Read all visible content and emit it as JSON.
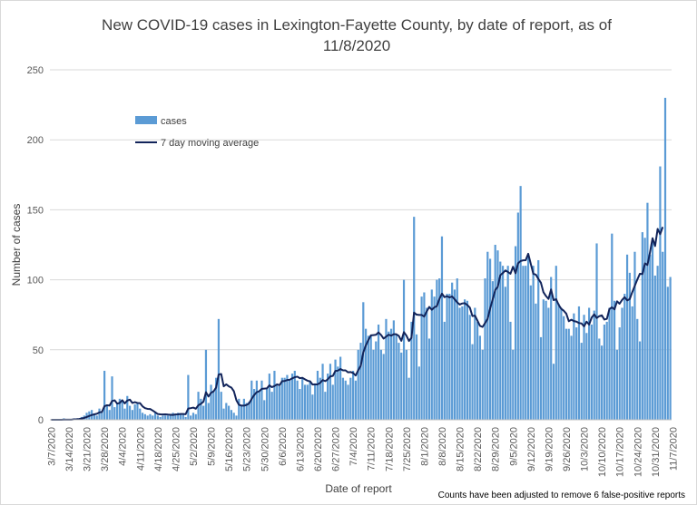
{
  "colors": {
    "bar": "#5b9bd5",
    "line": "#12245a",
    "grid": "#d9d9d9",
    "axis": "#bfbfbf"
  },
  "chart_data": {
    "type": "bar",
    "title_lines": [
      "New COVID-19 cases in Lexington-Fayette County, by date of report, as of",
      "11/8/2020"
    ],
    "xlabel": "Date of report",
    "ylabel": "Number of cases",
    "ylim": [
      0,
      250
    ],
    "yticks": [
      0,
      50,
      100,
      150,
      200,
      250
    ],
    "grid": true,
    "legend_placement": "upper-left",
    "note": "Counts have been adjusted to remove 6 false-positive reports",
    "start_date": "3/7/2020",
    "x_tick_labels": [
      "3/7/2020",
      "3/14/2020",
      "3/21/2020",
      "3/28/2020",
      "4/4/2020",
      "4/11/2020",
      "4/18/2020",
      "4/25/2020",
      "5/2/2020",
      "5/9/2020",
      "5/16/2020",
      "5/23/2020",
      "5/30/2020",
      "6/6/2020",
      "6/13/2020",
      "6/20/2020",
      "6/27/2020",
      "7/4/2020",
      "7/11/2020",
      "7/18/2020",
      "7/25/2020",
      "8/1/2020",
      "8/8/2020",
      "8/15/2020",
      "8/22/2020",
      "8/29/2020",
      "9/5/2020",
      "9/12/2020",
      "9/19/2020",
      "9/26/2020",
      "10/3/2020",
      "10/10/2020",
      "10/17/2020",
      "10/24/2020",
      "10/31/2020",
      "11/7/2020"
    ],
    "series": [
      {
        "name": "cases",
        "type": "bar",
        "values": [
          0,
          0,
          0,
          0,
          0,
          1,
          0,
          0,
          0,
          1,
          1,
          1,
          2,
          3,
          5,
          6,
          7,
          4,
          3,
          8,
          6,
          35,
          10,
          7,
          31,
          9,
          12,
          15,
          14,
          8,
          17,
          10,
          7,
          11,
          12,
          8,
          5,
          4,
          3,
          4,
          3,
          5,
          3,
          2,
          3,
          3,
          3,
          4,
          5,
          4,
          5,
          4,
          4,
          2,
          32,
          3,
          5,
          4,
          20,
          15,
          10,
          50,
          12,
          25,
          20,
          30,
          72,
          20,
          8,
          12,
          10,
          7,
          5,
          3,
          15,
          10,
          15,
          12,
          13,
          28,
          22,
          28,
          20,
          28,
          14,
          22,
          33,
          20,
          35,
          25,
          24,
          30,
          30,
          32,
          28,
          33,
          35,
          28,
          22,
          30,
          25,
          25,
          28,
          18,
          26,
          35,
          30,
          40,
          20,
          33,
          40,
          25,
          43,
          38,
          45,
          30,
          28,
          25,
          30,
          35,
          28,
          50,
          55,
          84,
          65,
          60,
          60,
          50,
          56,
          68,
          50,
          47,
          72,
          63,
          65,
          71,
          61,
          55,
          48,
          100,
          50,
          30,
          70,
          145,
          61,
          38,
          88,
          91,
          80,
          58,
          93,
          88,
          100,
          101,
          131,
          70,
          90,
          90,
          98,
          93,
          101,
          80,
          81,
          86,
          85,
          75,
          54,
          80,
          70,
          60,
          50,
          101,
          120,
          115,
          99,
          125,
          121,
          113,
          110,
          95,
          110,
          70,
          50,
          124,
          148,
          167,
          110,
          110,
          117,
          96,
          110,
          83,
          114,
          59,
          86,
          85,
          80,
          102,
          40,
          110,
          83,
          80,
          74,
          65,
          65,
          60,
          76,
          66,
          81,
          55,
          75,
          62,
          80,
          68,
          78,
          126,
          58,
          53,
          68,
          70,
          80,
          133,
          85,
          50,
          66,
          80,
          90,
          118,
          105,
          81,
          120,
          72,
          56,
          134,
          130,
          155,
          118,
          127,
          103,
          110,
          181,
          120,
          230,
          95,
          102
        ]
      },
      {
        "name": "7 day moving average",
        "type": "line",
        "values": [
          0,
          0,
          0,
          0,
          0,
          0.1,
          0.1,
          0.1,
          0.1,
          0.3,
          0.4,
          0.6,
          0.9,
          1.3,
          2,
          2.7,
          3.4,
          3.9,
          4.3,
          5.3,
          5.6,
          9.7,
          10.4,
          10.1,
          13.4,
          13.9,
          11.6,
          12,
          14,
          11.7,
          13.7,
          14.4,
          12,
          12.6,
          12,
          11.9,
          9.6,
          8.3,
          7.8,
          7.7,
          6.6,
          5.4,
          4.1,
          3.9,
          3.8,
          3.9,
          3.7,
          3.6,
          3.5,
          3.8,
          3.9,
          4.1,
          4.1,
          4,
          8,
          8.3,
          8.7,
          7.9,
          10.4,
          11.4,
          12.9,
          19.7,
          16.6,
          19.3,
          20.3,
          23,
          32.3,
          32.7,
          23.9,
          25.3,
          23.9,
          23,
          20.4,
          13.9,
          10.7,
          10.1,
          10.1,
          10.6,
          11.7,
          14.9,
          17.7,
          19.7,
          20.4,
          22.1,
          22.3,
          22.4,
          24.6,
          23.3,
          24.1,
          25.3,
          24.7,
          27.6,
          27.7,
          28.4,
          28.6,
          29.6,
          30.4,
          30.8,
          29.7,
          30,
          28.9,
          27.9,
          27.5,
          25.2,
          25.3,
          25.3,
          26.4,
          28.4,
          27.6,
          28.9,
          31,
          31.3,
          34.9,
          35.1,
          36.3,
          35.3,
          35.3,
          33.9,
          34.1,
          33.4,
          31.6,
          35.4,
          38.6,
          48.1,
          53.1,
          57,
          60.3,
          60.5,
          60.7,
          62.4,
          60.6,
          58,
          59.4,
          60.8,
          60.1,
          61.1,
          61.1,
          59.9,
          56.4,
          62.6,
          60.1,
          56.3,
          58.6,
          76.6,
          75.1,
          74.9,
          74.9,
          73.7,
          77.4,
          80.6,
          78.6,
          80.3,
          81.2,
          86.3,
          90.1,
          87.6,
          88.3,
          87.4,
          88.1,
          86.1,
          83.9,
          82.3,
          83.1,
          83.3,
          82,
          80.1,
          74.1,
          74.4,
          70.8,
          67.1,
          66.3,
          69.1,
          72.1,
          79.6,
          86,
          92.7,
          95,
          103.3,
          104.8,
          106.7,
          105.6,
          104.3,
          109.3,
          104.7,
          111.8,
          113.4,
          113.9,
          114,
          118.6,
          111.4,
          104.3,
          103.7,
          100.6,
          97.9,
          91.1,
          88.4,
          86.3,
          93.1,
          85.5,
          86.1,
          82.1,
          79.3,
          77.9,
          75.8,
          70.4,
          71.5,
          70.5,
          70.1,
          69.1,
          68.8,
          66.7,
          70.1,
          68,
          73,
          75.3,
          72.7,
          74,
          74.6,
          71.6,
          72.1,
          79.1,
          80.3,
          78.9,
          84.6,
          82.9,
          85.6,
          87.6,
          85.3,
          86.2,
          91.2,
          95.7,
          100.2,
          104.3,
          104.1,
          111.7,
          110.6,
          119.7,
          129.7,
          124.1,
          136.3,
          132.6,
          137.7
        ]
      }
    ]
  }
}
